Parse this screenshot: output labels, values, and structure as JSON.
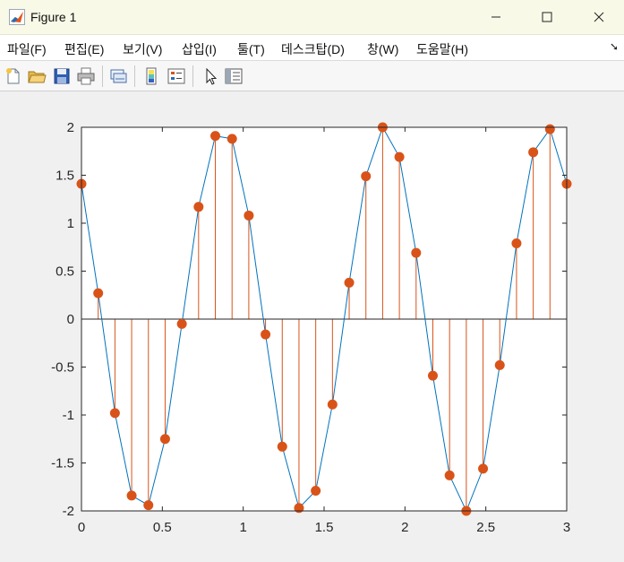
{
  "window": {
    "title": "Figure 1",
    "icon": "matlab-logo-icon"
  },
  "menu": [
    {
      "label": "파일(F)"
    },
    {
      "label": "편집(E)"
    },
    {
      "label": "보기(V)"
    },
    {
      "label": "삽입(I)"
    },
    {
      "label": "툴(T)"
    },
    {
      "label": "데스크탑(D)"
    },
    {
      "label": "창(W)"
    },
    {
      "label": "도움말(H)"
    }
  ],
  "toolbar": [
    {
      "icon": "new-figure-icon"
    },
    {
      "icon": "open-file-icon"
    },
    {
      "icon": "save-icon"
    },
    {
      "icon": "print-icon"
    },
    {
      "icon": "link-plot-icon"
    },
    {
      "icon": "insert-colorbar-icon"
    },
    {
      "icon": "insert-legend-icon"
    },
    {
      "icon": "edit-plot-icon"
    },
    {
      "icon": "property-inspector-icon"
    }
  ],
  "chart_data": {
    "type": "line",
    "title": "",
    "xlabel": "",
    "ylabel": "",
    "xlim": [
      0,
      3
    ],
    "ylim": [
      -2,
      2
    ],
    "xticks": [
      "0",
      "0.5",
      "1",
      "1.5",
      "2",
      "2.5",
      "3"
    ],
    "yticks": [
      "2",
      "1.5",
      "1",
      "0.5",
      "0",
      "-0.5",
      "-1",
      "-1.5",
      "-2"
    ],
    "grid": false,
    "series": [
      {
        "style": "line+stem",
        "line_color": "#0072BD",
        "marker_color": "#D95319",
        "x": [
          0,
          0.1034,
          0.2069,
          0.3103,
          0.4138,
          0.5172,
          0.6207,
          0.7241,
          0.8276,
          0.931,
          1.0345,
          1.1379,
          1.2414,
          1.3448,
          1.4483,
          1.5517,
          1.6552,
          1.7586,
          1.8621,
          1.9655,
          2.069,
          2.1724,
          2.2759,
          2.3793,
          2.4828,
          2.5862,
          2.6897,
          2.7931,
          2.8966,
          3.0
        ],
        "y": [
          1.41,
          0.27,
          -0.98,
          -1.84,
          -1.94,
          -1.25,
          -0.05,
          1.17,
          1.91,
          1.88,
          1.08,
          -0.16,
          -1.33,
          -1.97,
          -1.79,
          -0.89,
          0.38,
          1.49,
          2.0,
          1.69,
          0.69,
          -0.59,
          -1.63,
          -2.0,
          -1.56,
          -0.48,
          0.79,
          1.74,
          1.98,
          1.41
        ]
      }
    ]
  }
}
